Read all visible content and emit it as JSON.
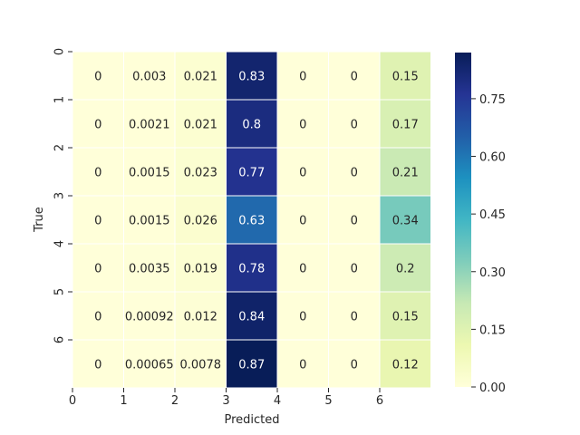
{
  "chart_data": {
    "type": "heatmap",
    "xlabel": "Predicted",
    "ylabel": "True",
    "x_tick_labels": [
      "0",
      "1",
      "2",
      "3",
      "4",
      "5",
      "6"
    ],
    "y_tick_labels": [
      "0",
      "1",
      "2",
      "3",
      "4",
      "5",
      "6"
    ],
    "cell_labels": [
      [
        "0",
        "0.003",
        "0.021",
        "0.83",
        "0",
        "0",
        "0.15"
      ],
      [
        "0",
        "0.0021",
        "0.021",
        "0.8",
        "0",
        "0",
        "0.17"
      ],
      [
        "0",
        "0.0015",
        "0.023",
        "0.77",
        "0",
        "0",
        "0.21"
      ],
      [
        "0",
        "0.0015",
        "0.026",
        "0.63",
        "0",
        "0",
        "0.34"
      ],
      [
        "0",
        "0.0035",
        "0.019",
        "0.78",
        "0",
        "0",
        "0.2"
      ],
      [
        "0",
        "0.00092",
        "0.012",
        "0.84",
        "0",
        "0",
        "0.15"
      ],
      [
        "0",
        "0.00065",
        "0.0078",
        "0.87",
        "0",
        "0",
        "0.12"
      ]
    ],
    "values": [
      [
        0,
        0.003,
        0.021,
        0.83,
        0,
        0,
        0.15
      ],
      [
        0,
        0.0021,
        0.021,
        0.8,
        0,
        0,
        0.17
      ],
      [
        0,
        0.0015,
        0.023,
        0.77,
        0,
        0,
        0.21
      ],
      [
        0,
        0.0015,
        0.026,
        0.63,
        0,
        0,
        0.34
      ],
      [
        0,
        0.0035,
        0.019,
        0.78,
        0,
        0,
        0.2
      ],
      [
        0,
        0.00092,
        0.012,
        0.84,
        0,
        0,
        0.15
      ],
      [
        0,
        0.00065,
        0.0078,
        0.87,
        0,
        0,
        0.12
      ]
    ],
    "colorbar": {
      "ticks": [
        "0.00",
        "0.15",
        "0.30",
        "0.45",
        "0.60",
        "0.75"
      ],
      "tick_values": [
        0,
        0.15,
        0.3,
        0.45,
        0.6,
        0.75
      ],
      "vmin": 0,
      "vmax": 0.87
    },
    "colormap": "YlGnBu",
    "colormap_stops": [
      "#ffffd9",
      "#edf8b1",
      "#c7e9b4",
      "#7fcdbb",
      "#41b6c4",
      "#1d91c0",
      "#225ea8",
      "#253494",
      "#081d58"
    ],
    "grid": false,
    "cell_border_color": "#ffffff"
  }
}
